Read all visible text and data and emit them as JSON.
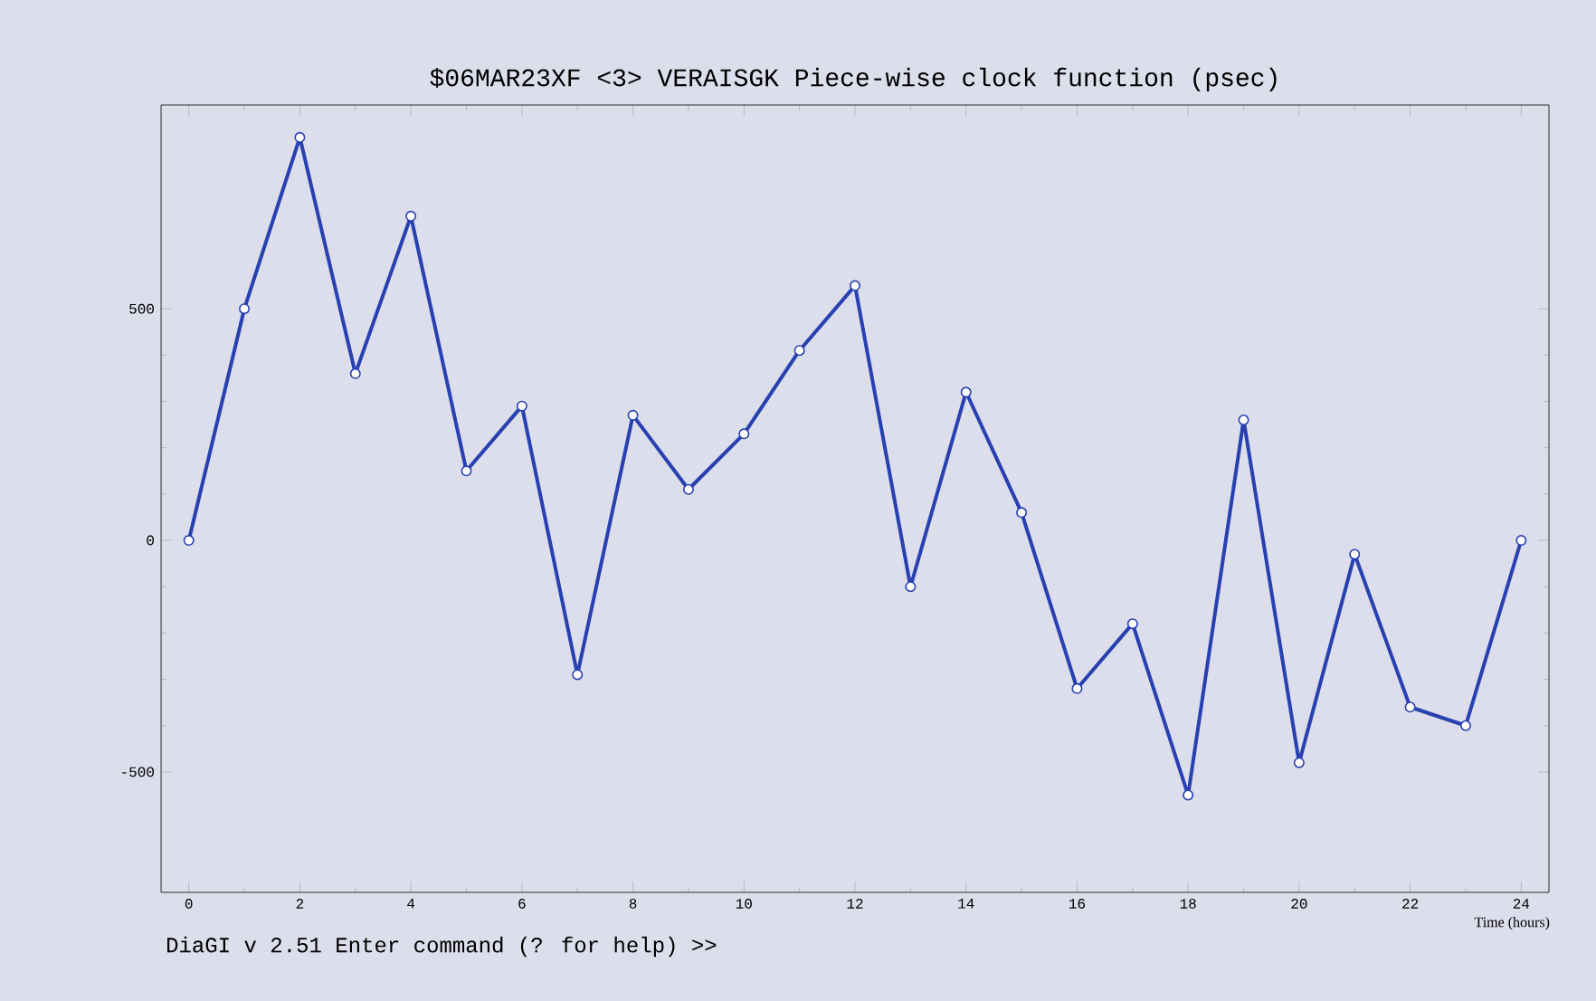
{
  "chart_data": {
    "type": "line",
    "title": "$06MAR23XF <3>   VERAISGK  Piece-wise clock function (psec)",
    "xlabel": "Time (hours)",
    "annotations": [
      "DiaGI v 2.51  Enter command (? for help) >>"
    ],
    "x": [
      0,
      1,
      2,
      3,
      4,
      5,
      6,
      7,
      8,
      9,
      10,
      11,
      12,
      13,
      14,
      15,
      16,
      17,
      18,
      19,
      20,
      21,
      22,
      23,
      24
    ],
    "series": [
      {
        "color": "#2840b0",
        "values": [
          0,
          500,
          870,
          360,
          700,
          150,
          290,
          -290,
          270,
          110,
          230,
          410,
          550,
          -100,
          320,
          60,
          -320,
          -180,
          -550,
          260,
          -480,
          -30,
          -360,
          -400,
          0
        ]
      }
    ],
    "xlim": [
      -0.5,
      24.5
    ],
    "ylim": [
      -760,
      940
    ],
    "xticks": [
      0,
      2,
      4,
      6,
      8,
      10,
      12,
      14,
      16,
      18,
      20,
      22,
      24
    ],
    "yticks": [
      -500,
      0,
      500
    ],
    "marker": "circle",
    "line_style": "solid"
  }
}
